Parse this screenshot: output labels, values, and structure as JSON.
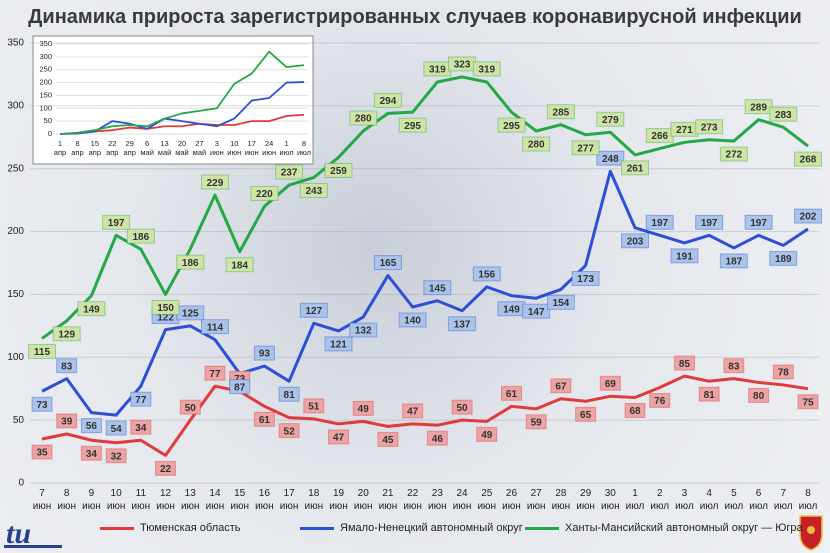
{
  "chart_data": [
    {
      "type": "line",
      "title": "Динамика прироста зарегистрированных случаев коронавирусной инфекции",
      "categories": [
        "7\nиюн",
        "8\nиюн",
        "9\nиюн",
        "10\nиюн",
        "11\nиюн",
        "12\nиюн",
        "13\nиюн",
        "14\nиюн",
        "15\nиюн",
        "16\nиюн",
        "17\nиюн",
        "18\nиюн",
        "19\nиюн",
        "20\nиюн",
        "21\nиюн",
        "22\nиюн",
        "23\nиюн",
        "24\nиюн",
        "25\nиюн",
        "26\nиюн",
        "27\nиюн",
        "28\nиюн",
        "29\nиюн",
        "30\nиюн",
        "1\nиюл",
        "2\nиюл",
        "3\nиюл",
        "4\nиюл",
        "5\nиюл",
        "6\nиюл",
        "7\nиюл",
        "8\nиюл"
      ],
      "series": [
        {
          "name": "Тюменская область",
          "color": "#e03a3a",
          "label_color": "#eba3a3",
          "values": [
            35,
            39,
            34,
            32,
            34,
            22,
            50,
            77,
            73,
            61,
            52,
            51,
            47,
            49,
            45,
            47,
            46,
            50,
            49,
            61,
            59,
            67,
            65,
            69,
            68,
            76,
            85,
            81,
            83,
            80,
            78,
            75
          ]
        },
        {
          "name": "Ямало-Ненецкий автономный округ",
          "color": "#2d4fd6",
          "label_color": "#a9c3e9",
          "values": [
            73,
            83,
            56,
            54,
            77,
            122,
            125,
            114,
            87,
            93,
            81,
            127,
            121,
            132,
            165,
            140,
            145,
            137,
            156,
            149,
            147,
            154,
            173,
            248,
            203,
            197,
            191,
            197,
            187,
            197,
            189,
            202
          ]
        },
        {
          "name": "Ханты-Мансийский автономный округ — Югра",
          "color": "#23a845",
          "label_color": "#cfe3a6",
          "values": [
            115,
            129,
            149,
            197,
            186,
            150,
            186,
            229,
            184,
            220,
            237,
            243,
            259,
            280,
            294,
            295,
            319,
            323,
            319,
            295,
            280,
            285,
            277,
            279,
            261,
            266,
            271,
            273,
            272,
            289,
            283,
            268
          ]
        }
      ],
      "ylim": [
        0,
        350
      ],
      "yticks": [
        0,
        50,
        100,
        150,
        200,
        250,
        300,
        350
      ],
      "legend": "bottom",
      "data_labels": true
    },
    {
      "type": "line",
      "categories": [
        "1\nапр",
        "8\nапр",
        "15\nапр",
        "22\nапр",
        "29\nапр",
        "6\nмай",
        "13\nмай",
        "20\nмай",
        "27\nмай",
        "3\nиюн",
        "10\nиюн",
        "17\nиюн",
        "24\nиюн",
        "1\nиюл",
        "8\nиюл"
      ],
      "series": [
        {
          "color": "#e03a3a",
          "values": [
            0,
            3,
            10,
            15,
            25,
            20,
            30,
            30,
            40,
            35,
            35,
            50,
            50,
            70,
            75
          ]
        },
        {
          "color": "#2d4fd6",
          "values": [
            0,
            2,
            10,
            50,
            40,
            20,
            60,
            50,
            40,
            30,
            60,
            130,
            140,
            200,
            202
          ]
        },
        {
          "color": "#23a845",
          "values": [
            0,
            5,
            15,
            30,
            35,
            30,
            60,
            80,
            90,
            100,
            195,
            235,
            320,
            260,
            268
          ]
        }
      ],
      "ylim": [
        0,
        350
      ],
      "yticks": [
        0,
        50,
        100,
        150,
        200,
        250,
        300,
        350
      ],
      "data_labels": false
    }
  ]
}
